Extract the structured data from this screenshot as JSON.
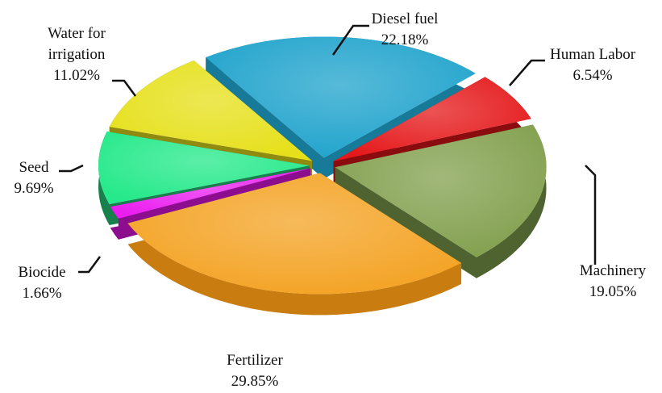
{
  "chart_data": {
    "type": "pie",
    "title": "",
    "series": [
      {
        "slices": [
          {
            "name": "Diesel fuel",
            "pct_label": "22.18%",
            "value": 22.18,
            "color": "#1fa3cc",
            "side_color": "#177a99"
          },
          {
            "name": "Human Labor",
            "pct_label": "6.54%",
            "value": 6.54,
            "color": "#e5191b",
            "side_color": "#8a0c0e"
          },
          {
            "name": "Machinery",
            "pct_label": "19.05%",
            "value": 19.05,
            "color": "#82a04e",
            "side_color": "#4f6330"
          },
          {
            "name": "Fertilizer",
            "pct_label": "29.85%",
            "value": 29.85,
            "color": "#f4a324",
            "side_color": "#c97c10"
          },
          {
            "name": "Biocide",
            "pct_label": "1.66%",
            "value": 1.66,
            "color": "#ea1ef0",
            "side_color": "#8c0e8f"
          },
          {
            "name": "Seed",
            "pct_label": "9.69%",
            "value": 9.69,
            "color": "#25e98a",
            "side_color": "#17804c"
          },
          {
            "name": "Water for irrigation",
            "label_lines": [
              "Water for",
              "irrigation"
            ],
            "pct_label": "11.02%",
            "value": 11.02,
            "color": "#e6e01a",
            "side_color": "#8f8a10"
          }
        ]
      }
    ],
    "legend": "none",
    "style": "3d-exploded"
  }
}
